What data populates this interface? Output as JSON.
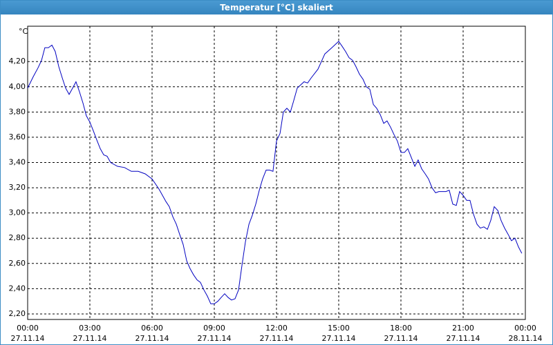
{
  "chart_data": {
    "type": "line",
    "title": "Temperatur [°C] skaliert",
    "y_unit": "°C",
    "xlim": [
      0,
      24
    ],
    "ylim": [
      2.156,
      4.48
    ],
    "grid": true,
    "xticks": [
      {
        "value": 0,
        "label": "00:00",
        "date": "27.11.14"
      },
      {
        "value": 3,
        "label": "03:00",
        "date": "27.11.14"
      },
      {
        "value": 6,
        "label": "06:00",
        "date": "27.11.14"
      },
      {
        "value": 9,
        "label": "09:00",
        "date": "27.11.14"
      },
      {
        "value": 12,
        "label": "12:00",
        "date": "27.11.14"
      },
      {
        "value": 15,
        "label": "15:00",
        "date": "27.11.14"
      },
      {
        "value": 18,
        "label": "18:00",
        "date": "27.11.14"
      },
      {
        "value": 21,
        "label": "21:00",
        "date": "27.11.14"
      },
      {
        "value": 24,
        "label": "00:00",
        "date": "28.11.14"
      }
    ],
    "yticks": [
      {
        "value": 2.2,
        "label": "2,20"
      },
      {
        "value": 2.4,
        "label": "2,40"
      },
      {
        "value": 2.6,
        "label": "2,60"
      },
      {
        "value": 2.8,
        "label": "2,80"
      },
      {
        "value": 3.0,
        "label": "3,00"
      },
      {
        "value": 3.2,
        "label": "3,20"
      },
      {
        "value": 3.4,
        "label": "3,40"
      },
      {
        "value": 3.6,
        "label": "3,60"
      },
      {
        "value": 3.8,
        "label": "3,80"
      },
      {
        "value": 4.0,
        "label": "4,00"
      },
      {
        "value": 4.2,
        "label": "4,20"
      }
    ],
    "series": [
      {
        "name": "Temperatur",
        "color": "#0000c0",
        "x": [
          0,
          0.27,
          0.5,
          0.67,
          0.83,
          1.0,
          1.17,
          1.33,
          1.5,
          1.67,
          1.83,
          2.0,
          2.17,
          2.33,
          2.5,
          2.67,
          2.83,
          3.0,
          3.17,
          3.33,
          3.5,
          3.67,
          3.83,
          4.0,
          4.33,
          4.67,
          5.0,
          5.33,
          5.67,
          6.0,
          6.33,
          6.67,
          6.83,
          7.0,
          7.17,
          7.33,
          7.5,
          7.67,
          7.83,
          8.0,
          8.17,
          8.33,
          8.5,
          8.67,
          8.83,
          9.0,
          9.17,
          9.33,
          9.5,
          9.67,
          9.83,
          10.0,
          10.17,
          10.33,
          10.5,
          10.67,
          10.83,
          11.0,
          11.17,
          11.33,
          11.5,
          11.67,
          11.83,
          12.0,
          12.17,
          12.33,
          12.5,
          12.67,
          12.83,
          13.0,
          13.33,
          13.5,
          13.67,
          14.0,
          14.33,
          14.67,
          15.0,
          15.17,
          15.33,
          15.5,
          15.67,
          15.83,
          16.0,
          16.17,
          16.33,
          16.5,
          16.67,
          16.83,
          17.0,
          17.17,
          17.33,
          17.5,
          17.67,
          17.83,
          18.0,
          18.17,
          18.33,
          18.5,
          18.67,
          18.83,
          19.0,
          19.17,
          19.33,
          19.5,
          19.67,
          19.83,
          20.17,
          20.33,
          20.5,
          20.67,
          20.83,
          21.0,
          21.17,
          21.33,
          21.5,
          21.67,
          21.83,
          22.0,
          22.17,
          22.33,
          22.5,
          22.67,
          22.83,
          23.0,
          23.17,
          23.33,
          23.5,
          23.67,
          23.83
        ],
        "values": [
          3.99,
          4.08,
          4.15,
          4.21,
          4.31,
          4.31,
          4.33,
          4.28,
          4.16,
          4.07,
          3.99,
          3.94,
          3.99,
          4.04,
          3.96,
          3.87,
          3.77,
          3.72,
          3.65,
          3.58,
          3.51,
          3.46,
          3.45,
          3.4,
          3.37,
          3.36,
          3.33,
          3.33,
          3.31,
          3.27,
          3.19,
          3.09,
          3.05,
          2.97,
          2.91,
          2.83,
          2.75,
          2.62,
          2.56,
          2.51,
          2.47,
          2.45,
          2.39,
          2.34,
          2.28,
          2.28,
          2.3,
          2.33,
          2.36,
          2.33,
          2.31,
          2.32,
          2.39,
          2.58,
          2.77,
          2.91,
          2.98,
          3.07,
          3.18,
          3.27,
          3.34,
          3.34,
          3.33,
          3.57,
          3.63,
          3.8,
          3.83,
          3.8,
          3.89,
          3.99,
          4.04,
          4.03,
          4.07,
          4.14,
          4.26,
          4.31,
          4.36,
          4.32,
          4.28,
          4.23,
          4.21,
          4.16,
          4.1,
          4.06,
          4.0,
          3.98,
          3.86,
          3.83,
          3.78,
          3.71,
          3.73,
          3.68,
          3.62,
          3.57,
          3.48,
          3.48,
          3.51,
          3.44,
          3.37,
          3.42,
          3.35,
          3.31,
          3.27,
          3.2,
          3.16,
          3.17,
          3.17,
          3.18,
          3.07,
          3.06,
          3.17,
          3.14,
          3.1,
          3.1,
          2.99,
          2.91,
          2.88,
          2.89,
          2.87,
          2.94,
          3.05,
          3.02,
          2.94,
          2.88,
          2.83,
          2.78,
          2.8,
          2.73,
          2.68
        ]
      }
    ]
  }
}
